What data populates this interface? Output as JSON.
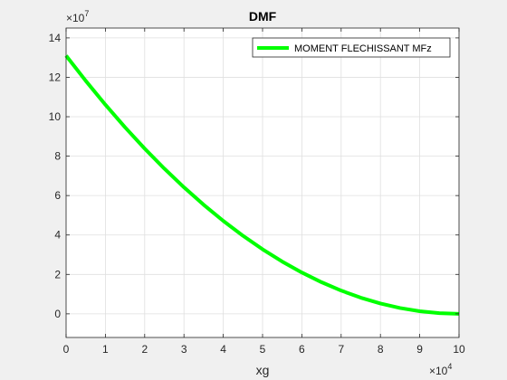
{
  "chart_data": {
    "type": "line",
    "title": "DMF",
    "xlabel": "xg",
    "ylabel": "",
    "x_exponent_label": "×10",
    "x_exponent_power": "4",
    "y_exponent_label": "×10",
    "y_exponent_power": "7",
    "xlim": [
      0,
      100000
    ],
    "ylim": [
      -12000000,
      145000000
    ],
    "x_scale_factor": 10000,
    "y_scale_factor": 10000000,
    "xticks": [
      0,
      10000,
      20000,
      30000,
      40000,
      50000,
      60000,
      70000,
      80000,
      90000,
      100000
    ],
    "xtick_labels": [
      "0",
      "1",
      "2",
      "3",
      "4",
      "5",
      "6",
      "7",
      "8",
      "9",
      "10"
    ],
    "yticks": [
      0,
      20000000,
      40000000,
      60000000,
      80000000,
      100000000,
      120000000,
      140000000
    ],
    "ytick_labels": [
      "0",
      "2",
      "4",
      "6",
      "8",
      "10",
      "12",
      "14"
    ],
    "grid": true,
    "legend_position": "top-right",
    "series": [
      {
        "name": "MOMENT FLECHISSANT MFz",
        "color": "#00ff00",
        "x": [
          0,
          5000,
          10000,
          15000,
          20000,
          25000,
          30000,
          35000,
          40000,
          45000,
          50000,
          55000,
          60000,
          65000,
          70000,
          75000,
          80000,
          85000,
          90000,
          95000,
          100000
        ],
        "y": [
          131000000,
          118227500,
          106110000,
          94647500,
          83840000,
          73687500,
          64190000,
          55347500,
          47160000,
          39627500,
          32750000,
          26527500,
          20960000,
          16047500,
          11790000,
          8187500,
          5240000,
          2947500,
          1310000,
          327500,
          0
        ]
      }
    ]
  }
}
